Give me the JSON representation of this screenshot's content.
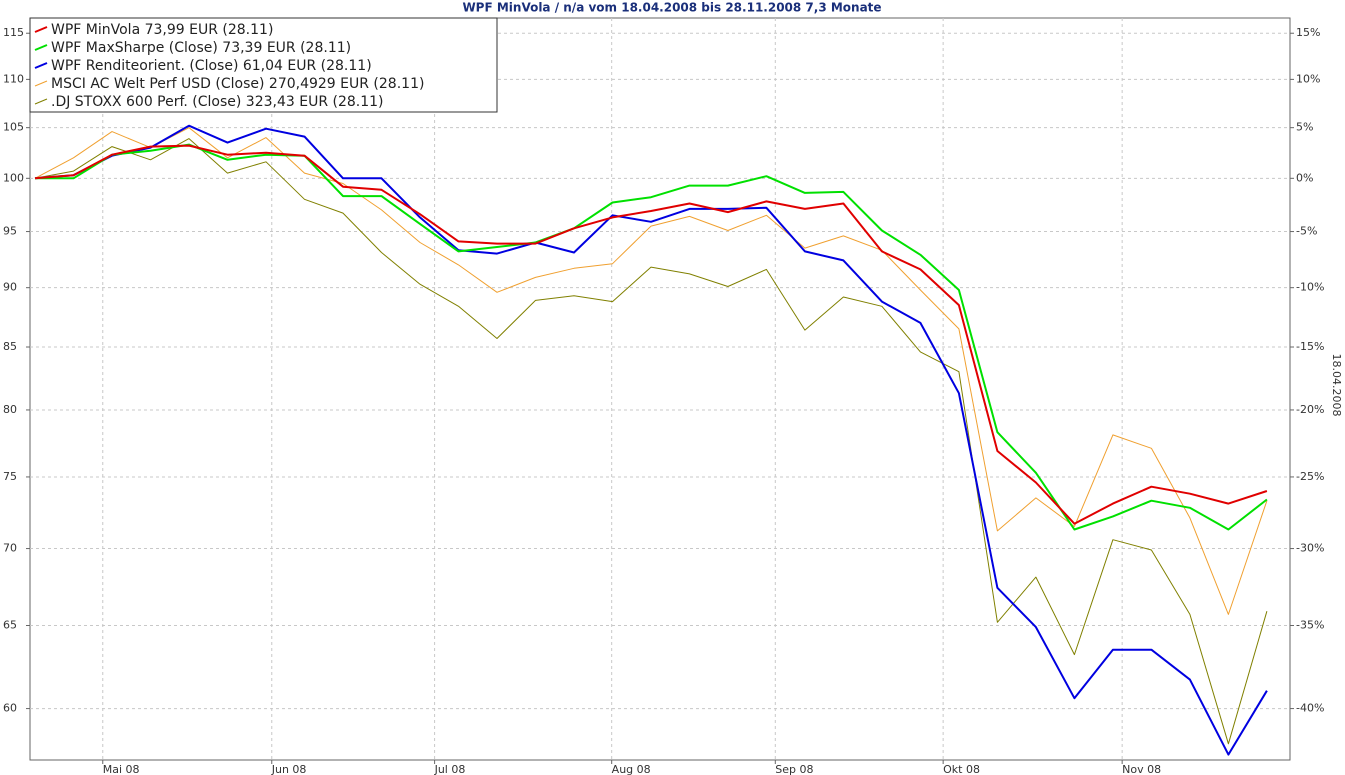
{
  "chart_data": {
    "type": "line",
    "title": "WPF MinVola / n/a vom 18.04.2008 bis 28.11.2008 7,3 Monate",
    "y2_label": "18.04.2008",
    "log_scale": true,
    "grid": true,
    "legend": "upper left",
    "categories": [
      null,
      null,
      null,
      null,
      null,
      null,
      null,
      null,
      null,
      null,
      null,
      null,
      null,
      null,
      null,
      null,
      null,
      null,
      null,
      null,
      null,
      null,
      null,
      null,
      null,
      null,
      null,
      null,
      null,
      null,
      null,
      null,
      null
    ],
    "xlim": [
      -0.13,
      32.6
    ],
    "xticks": [
      {
        "value": 1.76,
        "label": "Mai 08"
      },
      {
        "value": 6.15,
        "label": "Jun 08"
      },
      {
        "value": 10.38,
        "label": "Jul 08"
      },
      {
        "value": 14.98,
        "label": "Aug 08"
      },
      {
        "value": 19.23,
        "label": "Sep 08"
      },
      {
        "value": 23.59,
        "label": "Okt 08"
      },
      {
        "value": 28.24,
        "label": "Nov 08"
      }
    ],
    "ylim": [
      57.1,
      116.7
    ],
    "yticks": [
      60,
      65,
      70,
      75,
      80,
      85,
      90,
      95,
      100,
      105,
      110,
      115
    ],
    "y2lim": [
      -42.9,
      16.7
    ],
    "y2ticks": [
      {
        "value": -40,
        "label": "-40%"
      },
      {
        "value": -35,
        "label": "-35%"
      },
      {
        "value": -30,
        "label": "-30%"
      },
      {
        "value": -25,
        "label": "-25%"
      },
      {
        "value": -20,
        "label": "-20%"
      },
      {
        "value": -15,
        "label": "-15%"
      },
      {
        "value": -10,
        "label": "-10%"
      },
      {
        "value": -5,
        "label": "-5%"
      },
      {
        "value": 0,
        "label": "0%"
      },
      {
        "value": 5,
        "label": "5%"
      },
      {
        "value": 10,
        "label": "10%"
      },
      {
        "value": 15,
        "label": "15%"
      }
    ],
    "series": [
      {
        "name": "WPF MinVola 73,99 EUR (28.11)",
        "color": "#e00000",
        "values": [
          100,
          100.3,
          102.3,
          103.1,
          103.2,
          102.3,
          102.5,
          102.2,
          99.2,
          98.9,
          96.6,
          94.1,
          93.9,
          93.9,
          95.3,
          96.3,
          96.9,
          97.6,
          96.8,
          97.8,
          97.1,
          97.6,
          93.2,
          91.6,
          88.5,
          76.9,
          74.6,
          71.7,
          73.1,
          74.3,
          73.8,
          73.1,
          73.99
        ]
      },
      {
        "name": "WPF MaxSharpe (Close) 73,39 EUR (28.11)",
        "color": "#00e000",
        "values": [
          100,
          100.0,
          102.3,
          102.7,
          103.3,
          101.8,
          102.3,
          102.2,
          98.3,
          98.3,
          95.7,
          93.2,
          93.6,
          94.0,
          95.3,
          97.7,
          98.2,
          99.3,
          99.3,
          100.2,
          98.6,
          98.7,
          95.1,
          92.9,
          89.8,
          78.3,
          75.3,
          71.3,
          72.2,
          73.3,
          72.8,
          71.3,
          73.39
        ]
      },
      {
        "name": "WPF Renditeorient. (Close) 61,04 EUR (28.11)",
        "color": "#0000e0",
        "values": [
          100,
          100.3,
          102.2,
          103.0,
          105.2,
          103.5,
          104.9,
          104.1,
          100.0,
          100.0,
          96.3,
          93.3,
          93.0,
          94.0,
          93.1,
          96.5,
          95.9,
          97.1,
          97.1,
          97.2,
          93.2,
          92.4,
          88.8,
          87.0,
          81.3,
          67.4,
          64.9,
          60.6,
          63.5,
          63.5,
          61.7,
          57.4,
          61.04
        ]
      },
      {
        "name": "MSCI AC Welt Perf USD (Close) 270,4929 EUR (28.11)",
        "color": "#f0a030",
        "values": [
          100,
          102.0,
          104.6,
          103.0,
          105.0,
          102.0,
          104.0,
          100.5,
          99.5,
          97.0,
          94.0,
          92.0,
          89.6,
          90.9,
          91.7,
          92.1,
          95.5,
          96.4,
          95.1,
          96.5,
          93.5,
          94.6,
          93.3,
          89.8,
          86.5,
          71.2,
          73.5,
          71.5,
          78.1,
          77.1,
          72.1,
          65.7,
          73.3
        ]
      },
      {
        "name": ".DJ STOXX 600 Perf. (Close) 323,43 EUR (28.11)",
        "color": "#808000",
        "values": [
          100,
          100.7,
          103.1,
          101.8,
          103.9,
          100.5,
          101.6,
          98.0,
          96.7,
          93.1,
          90.3,
          88.4,
          85.7,
          88.9,
          89.3,
          88.8,
          91.8,
          91.2,
          90.1,
          91.6,
          86.4,
          89.2,
          88.4,
          84.6,
          83.0,
          65.2,
          68.1,
          63.2,
          70.6,
          69.9,
          65.7,
          58.0,
          65.9
        ]
      }
    ]
  }
}
